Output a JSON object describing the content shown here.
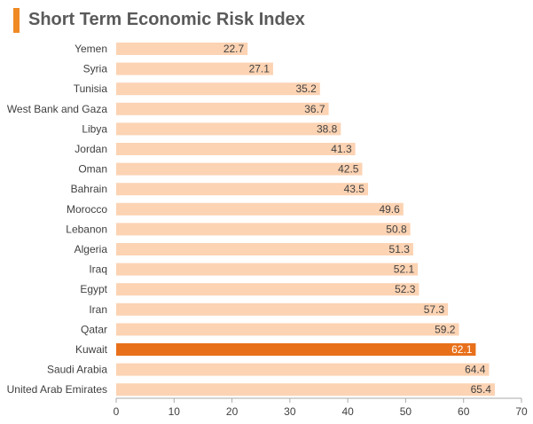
{
  "header": {
    "title": "Short Term Economic Risk Index"
  },
  "colors": {
    "accent": "#f08a24",
    "bar": "#fcd3b3",
    "highlight": "#e8701a",
    "axis": "#aaaaaa"
  },
  "chart_data": {
    "type": "bar",
    "orientation": "horizontal",
    "title": "Short Term Economic Risk Index",
    "categories": [
      "Yemen",
      "Syria",
      "Tunisia",
      "West Bank and Gaza",
      "Libya",
      "Jordan",
      "Oman",
      "Bahrain",
      "Morocco",
      "Lebanon",
      "Algeria",
      "Iraq",
      "Egypt",
      "Iran",
      "Qatar",
      "Kuwait",
      "Saudi Arabia",
      "United Arab Emirates"
    ],
    "values": [
      22.7,
      27.1,
      35.2,
      36.7,
      38.8,
      41.3,
      42.5,
      43.5,
      49.6,
      50.8,
      51.3,
      52.1,
      52.3,
      57.3,
      59.2,
      62.1,
      64.4,
      65.4
    ],
    "value_labels": [
      "22.7",
      "27.1",
      "35.2",
      "36.7",
      "38.8",
      "41.3",
      "42.5",
      "43.5",
      "49.6",
      "50.8",
      "51.3",
      "52.1",
      "52.3",
      "57.3",
      "59.2",
      "62.1",
      "64.4",
      "65.4"
    ],
    "highlighted_category": "Kuwait",
    "xlim": [
      0,
      70
    ],
    "xticks": [
      0,
      10,
      20,
      30,
      40,
      50,
      60,
      70
    ],
    "xtick_labels": [
      "0",
      "10",
      "20",
      "30",
      "40",
      "50",
      "60",
      "70"
    ],
    "grid": false,
    "legend": "none"
  }
}
